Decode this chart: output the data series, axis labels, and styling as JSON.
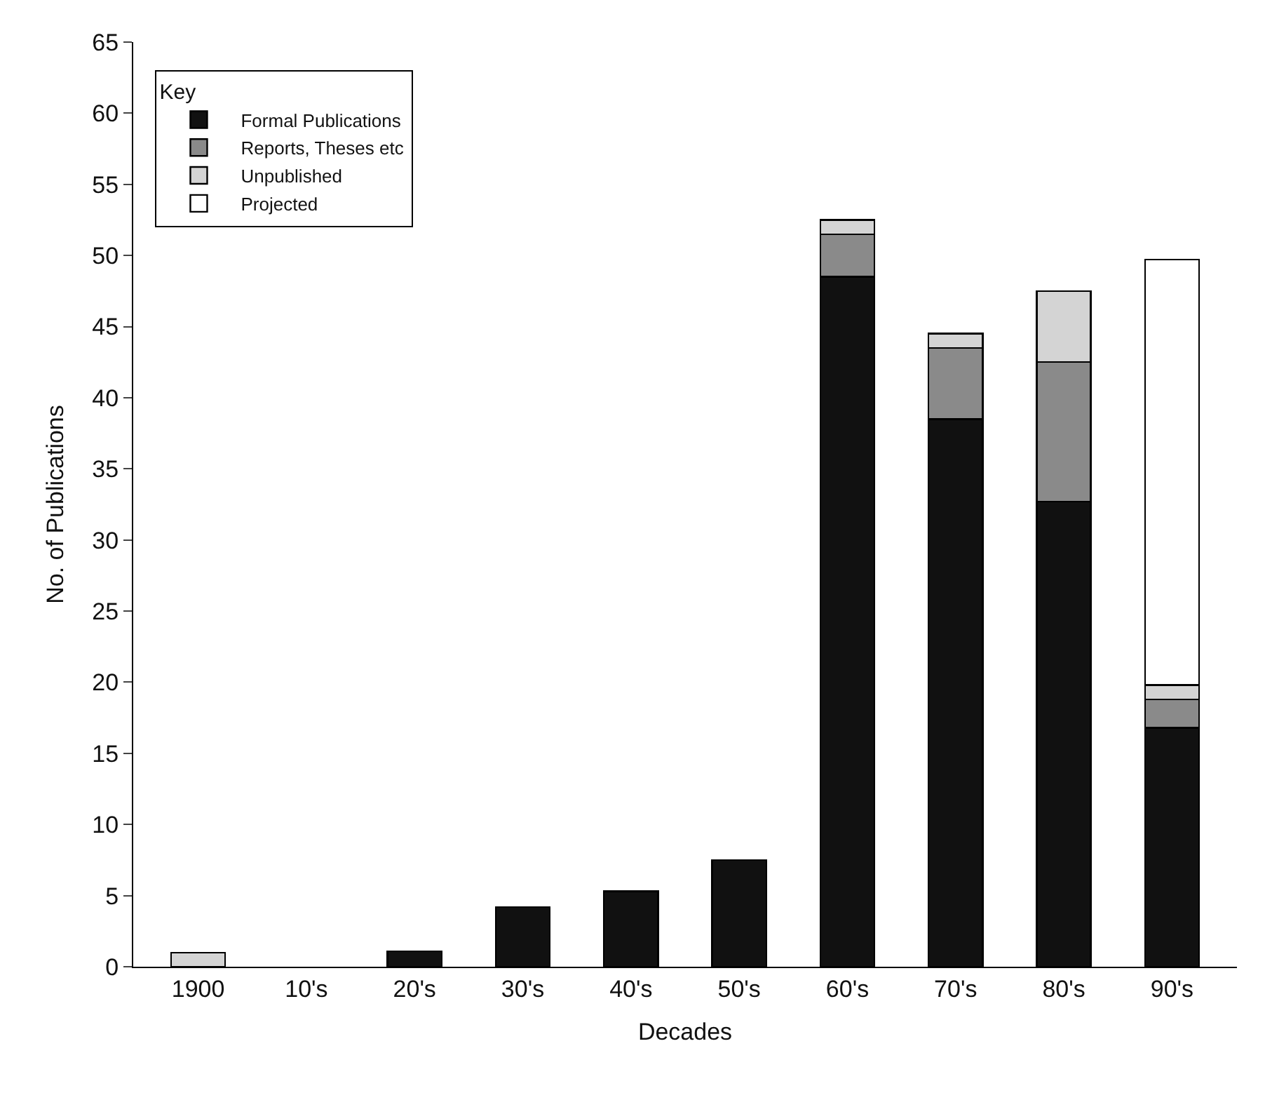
{
  "chart_data": {
    "type": "bar",
    "stacked": true,
    "xlabel": "Decades",
    "ylabel": "No. of Publications",
    "legend_title": "Key",
    "legend": "top left",
    "categories": [
      "1900",
      "10's",
      "20's",
      "30's",
      "40's",
      "50's",
      "60's",
      "70's",
      "80's",
      "90's"
    ],
    "series": [
      {
        "name": "Formal Publications",
        "color": "#111111",
        "values": [
          null,
          null,
          1.1,
          4.2,
          5.3,
          7.5,
          48.5,
          38.5,
          32.7,
          16.8
        ]
      },
      {
        "name": "Reports, Theses etc",
        "color": "#8a8a8a",
        "values": [
          null,
          null,
          null,
          null,
          null,
          null,
          3,
          5,
          9.8,
          2
        ]
      },
      {
        "name": "Unpublished",
        "color": "#d4d4d4",
        "values": [
          1,
          null,
          null,
          null,
          null,
          null,
          1,
          1,
          5,
          1
        ]
      },
      {
        "name": "Projected",
        "color": "#ffffff",
        "values": [
          null,
          null,
          null,
          null,
          null,
          null,
          null,
          null,
          null,
          29.9
        ]
      }
    ],
    "ylim": [
      0,
      65
    ],
    "yticks": [
      0,
      5,
      10,
      15,
      20,
      25,
      30,
      35,
      40,
      45,
      50,
      55,
      60,
      65
    ]
  }
}
